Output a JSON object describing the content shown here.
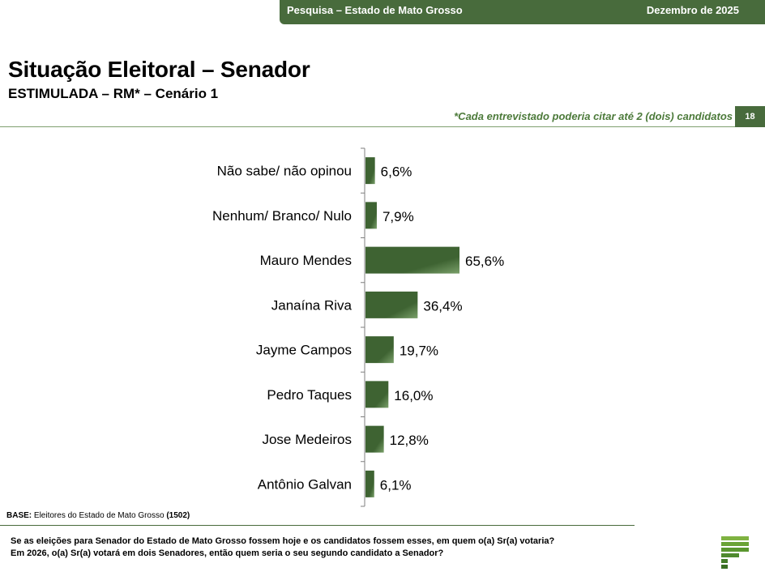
{
  "header": {
    "survey_label": "Pesquisa – Estado de Mato Grosso",
    "date_label": "Dezembro de 2025"
  },
  "page": {
    "title": "Situação Eleitoral – Senador",
    "subtitle": "ESTIMULADA – RM* – Cenário 1",
    "note": "*Cada entrevistado poderia citar até 2 (dois) candidatos",
    "page_number": "18"
  },
  "chart_data": {
    "type": "bar",
    "orientation": "horizontal",
    "categories": [
      "Não sabe/ não opinou",
      "Nenhum/ Branco/ Nulo",
      "Mauro Mendes",
      "Janaína Riva",
      "Jayme Campos",
      "Pedro Taques",
      "Jose Medeiros",
      "Antônio Galvan"
    ],
    "values": [
      6.6,
      7.9,
      65.6,
      36.4,
      19.7,
      16.0,
      12.8,
      6.1
    ],
    "value_labels": [
      "6,6%",
      "7,9%",
      "65,6%",
      "36,4%",
      "19,7%",
      "16,0%",
      "12,8%",
      "6,1%"
    ],
    "xlim": [
      0,
      100
    ],
    "grid": false,
    "bar_color": "#3e6332",
    "bar_color_light": "#7aa06a"
  },
  "footer": {
    "base_label": "BASE:",
    "base_text": "Eleitores do Estado de Mato Grosso",
    "base_count": "(1502)",
    "question_line1": "Se as eleições para Senador do Estado de Mato Grosso fossem hoje e os candidatos fossem esses, em quem o(a) Sr(a) votaria?",
    "question_line2": "Em 2026, o(a) Sr(a) votará em dois Senadores, então quem seria o seu segundo candidato a Senador?"
  },
  "logo": {
    "name": "brand-logo-icon",
    "color": "#4f8a2e"
  }
}
